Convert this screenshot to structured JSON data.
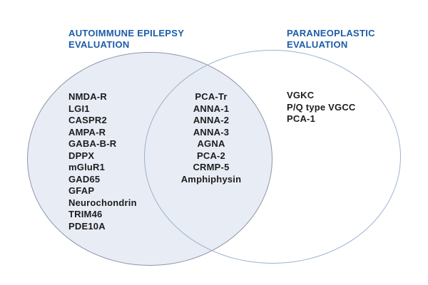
{
  "diagram": {
    "type": "venn",
    "left_set": {
      "title_lines": [
        "AUTOIMMUNE EPILEPSY",
        "EVALUATION"
      ],
      "items": [
        "NMDA-R",
        "LGI1",
        "CASPR2",
        "AMPA-R",
        "GABA-B-R",
        "DPPX",
        "mGluR1",
        "GAD65",
        "GFAP",
        "Neurochondrin",
        "TRIM46",
        "PDE10A"
      ]
    },
    "intersection": {
      "items": [
        "PCA-Tr",
        "ANNA-1",
        "ANNA-2",
        "ANNA-3",
        "AGNA",
        "PCA-2",
        "CRMP-5",
        "Amphiphysin"
      ]
    },
    "right_set": {
      "title_lines": [
        "PARANEOPLASTIC",
        "EVALUATION"
      ],
      "items": [
        "VGKC",
        "P/Q type VGCC",
        "PCA-1"
      ]
    }
  },
  "colors": {
    "title": "#1b5ca8",
    "left_circle_fill": "#e8ecf4",
    "left_circle_border": "#8e96ab",
    "right_circle_border": "#9db3cd",
    "text": "#1d1d1f",
    "background": "#ffffff"
  }
}
